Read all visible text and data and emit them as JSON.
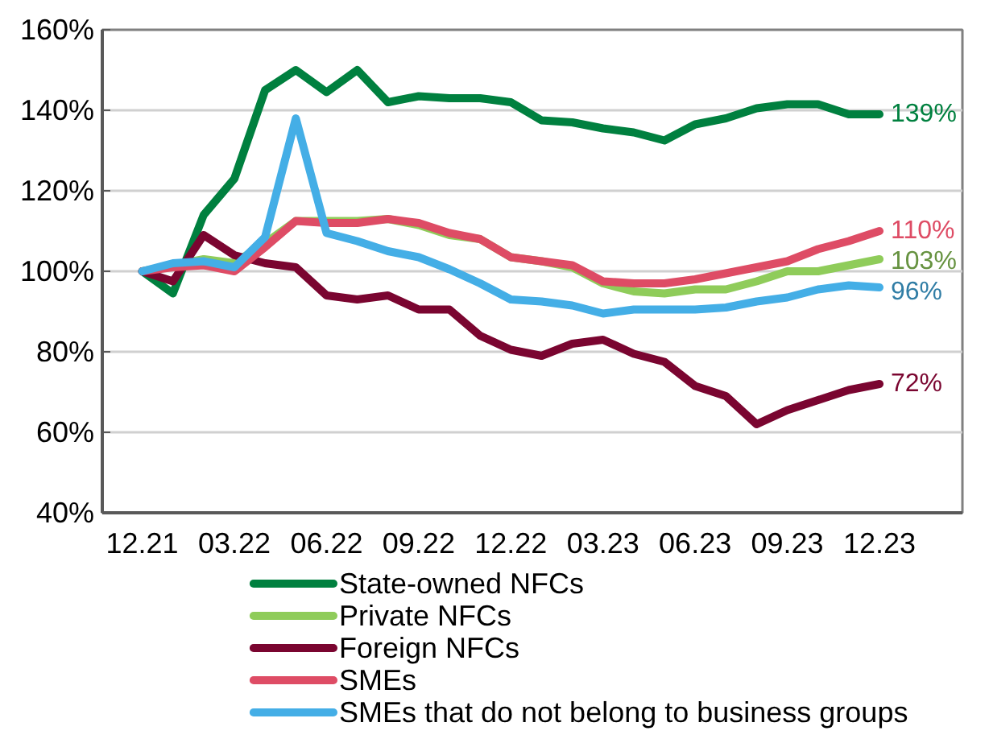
{
  "chart_data": {
    "type": "line",
    "categories": [
      "12.21",
      null,
      null,
      "03.22",
      null,
      null,
      "06.22",
      null,
      null,
      "09.22",
      null,
      null,
      "12.22",
      null,
      null,
      "03.23",
      null,
      null,
      "06.23",
      null,
      null,
      "09.23",
      null,
      null,
      "12.23"
    ],
    "ylim": [
      40,
      160
    ],
    "yticks": [
      {
        "value": 40,
        "label": "40%"
      },
      {
        "value": 60,
        "label": "60%"
      },
      {
        "value": 80,
        "label": "80%"
      },
      {
        "value": 100,
        "label": "100%"
      },
      {
        "value": 120,
        "label": "120%"
      },
      {
        "value": 140,
        "label": "140%"
      },
      {
        "value": 160,
        "label": "160%"
      }
    ],
    "grid": "y",
    "legend": "bottom",
    "series": [
      {
        "name": "State-owned NFCs",
        "color": "#00803f",
        "values": [
          100,
          94.5,
          114,
          123,
          145,
          150,
          144.5,
          150,
          142,
          143.5,
          143,
          143,
          142,
          137.5,
          137,
          135.5,
          134.5,
          132.5,
          136.5,
          138,
          140.5,
          141.5,
          141.5,
          139,
          139
        ],
        "value_labels": [
          null,
          null,
          null,
          null,
          null,
          null,
          null,
          null,
          null,
          null,
          null,
          null,
          null,
          null,
          null,
          null,
          null,
          null,
          null,
          null,
          null,
          null,
          null,
          null,
          "139%"
        ]
      },
      {
        "name": "Private NFCs",
        "color": "#8fcc5a",
        "values": [
          100,
          101.5,
          103,
          102,
          107,
          112.5,
          112.5,
          112.5,
          113,
          111.5,
          109,
          108,
          103.5,
          102.5,
          101,
          97,
          95,
          94.5,
          95.5,
          95.5,
          97.5,
          100,
          100,
          101.5,
          103
        ],
        "value_labels": [
          null,
          null,
          null,
          null,
          null,
          null,
          null,
          null,
          null,
          null,
          null,
          null,
          null,
          null,
          null,
          null,
          null,
          null,
          null,
          null,
          null,
          null,
          null,
          null,
          "103%"
        ]
      },
      {
        "name": "Foreign NFCs",
        "color": "#7a0530",
        "values": [
          100,
          97.5,
          109,
          104,
          102,
          101,
          94,
          93,
          94,
          90.5,
          90.5,
          84,
          80.5,
          79,
          82,
          83,
          79.5,
          77.5,
          71.5,
          69,
          62,
          65.5,
          68,
          70.5,
          72
        ],
        "value_labels": [
          null,
          null,
          null,
          null,
          null,
          null,
          null,
          null,
          null,
          null,
          null,
          null,
          null,
          null,
          null,
          null,
          null,
          null,
          null,
          null,
          null,
          null,
          null,
          null,
          "72%"
        ]
      },
      {
        "name": "SMEs",
        "color": "#de4c65",
        "values": [
          100,
          101,
          101.5,
          100,
          106,
          112.5,
          112,
          112,
          113,
          112,
          109.5,
          108,
          103.5,
          102.5,
          101.5,
          97.5,
          97,
          97,
          98,
          99.5,
          101,
          102.5,
          105.5,
          107.5,
          110
        ],
        "value_labels": [
          null,
          null,
          null,
          null,
          null,
          null,
          null,
          null,
          null,
          null,
          null,
          null,
          null,
          null,
          null,
          null,
          null,
          null,
          null,
          null,
          null,
          null,
          null,
          null,
          "110%"
        ]
      },
      {
        "name": "SMEs that do not belong to business groups",
        "color": "#44aee6",
        "values": [
          100,
          102,
          102.5,
          101,
          108.5,
          138,
          109.5,
          107.5,
          105,
          103.5,
          100.5,
          97,
          93,
          92.5,
          91.5,
          89.5,
          90.5,
          90.5,
          90.5,
          91,
          92.5,
          93.5,
          95.5,
          96.5,
          96
        ],
        "value_labels": [
          null,
          null,
          null,
          null,
          null,
          null,
          null,
          null,
          null,
          null,
          null,
          null,
          null,
          null,
          null,
          null,
          null,
          null,
          null,
          null,
          null,
          null,
          null,
          null,
          "96%"
        ]
      }
    ]
  }
}
